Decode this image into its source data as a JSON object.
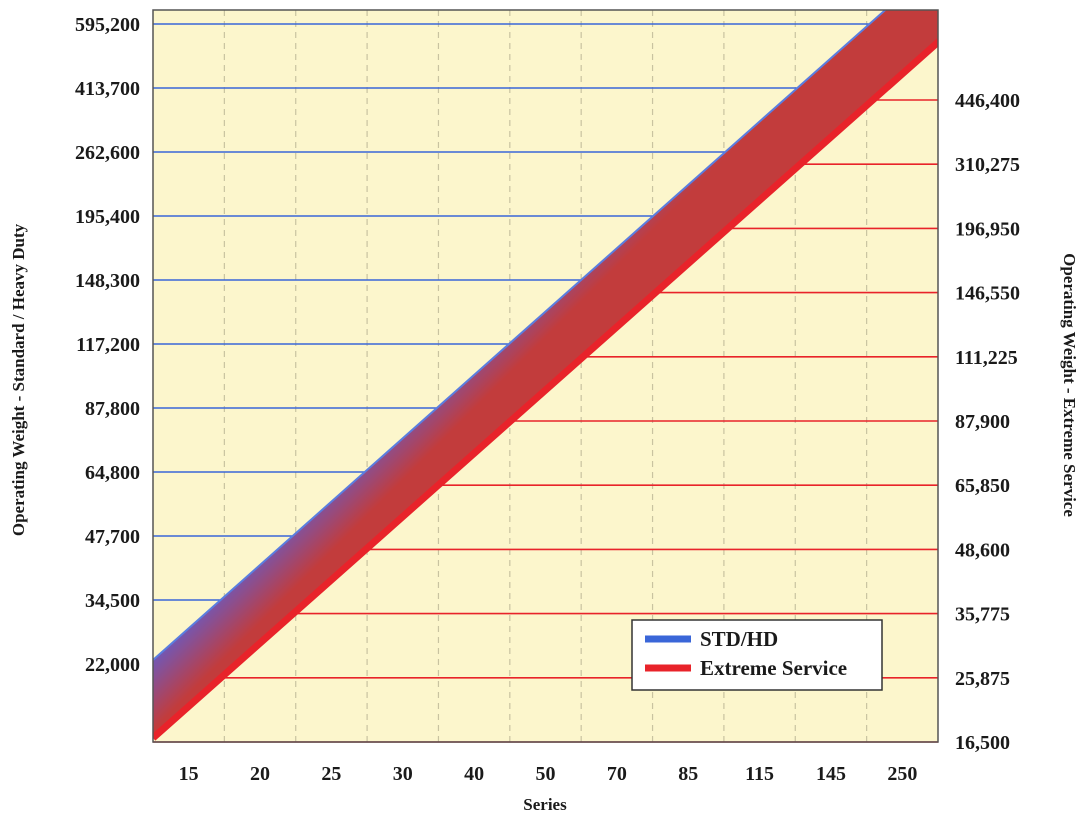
{
  "chart_data": {
    "type": "line",
    "x_categories": [
      "15",
      "20",
      "25",
      "30",
      "40",
      "50",
      "70",
      "85",
      "115",
      "145",
      "250"
    ],
    "xlabel": "Series",
    "ylabel_left": "Operating Weight - Standard / Heavy Duty",
    "ylabel_right": "Operating Weight - Extreme Service",
    "left_ticks": [
      "595,200",
      "413,700",
      "262,600",
      "195,400",
      "148,300",
      "117,200",
      "87,800",
      "64,800",
      "47,700",
      "34,500",
      "22,000"
    ],
    "right_ticks": [
      "446,400",
      "310,275",
      "196,950",
      "146,550",
      "111,225",
      "87,900",
      "65,850",
      "48,600",
      "35,775",
      "25,875",
      "16,500"
    ],
    "series": [
      {
        "name": "STD/HD",
        "color": "#3a66d8",
        "values": [
          "22,000",
          "34,500",
          "47,700",
          "64,800",
          "87,800",
          "117,200",
          "148,300",
          "195,400",
          "262,600",
          "413,700",
          "595,200"
        ]
      },
      {
        "name": "Extreme Service",
        "color": "#e8232a",
        "values": [
          "16,500",
          "25,875",
          "35,775",
          "48,600",
          "65,850",
          "87,900",
          "111,225",
          "146,550",
          "196,950",
          "310,275",
          "446,400"
        ]
      }
    ],
    "legend_position": "bottom-right",
    "grid": true
  },
  "colors": {
    "plot_background": "#fcf6cc",
    "left_grid": "#4a6cb8",
    "right_grid": "#e8232a",
    "blue_band": "#3a66d8",
    "red_band": "#c03838",
    "red_line": "#e8232a"
  }
}
